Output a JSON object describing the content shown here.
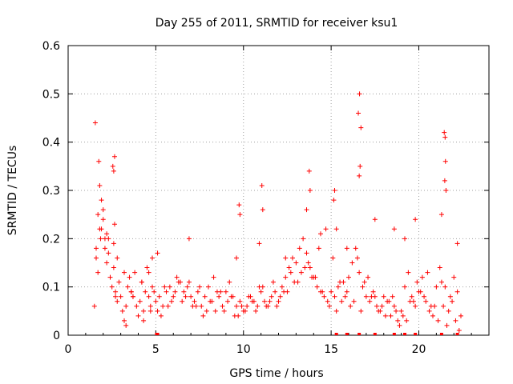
{
  "chart_data": {
    "type": "scatter",
    "title": "Day 255 of 2011, SRMTID for receiver ksu1",
    "xlabel": "GPS time / hours",
    "ylabel": "SRMTID / TECUs",
    "xlim": [
      0,
      24
    ],
    "ylim": [
      0,
      0.6
    ],
    "xticks": [
      "0",
      "5",
      "10",
      "15",
      "20"
    ],
    "xtick_values": [
      0,
      5,
      10,
      15,
      20
    ],
    "yticks": [
      "0",
      "0.1",
      "0.2",
      "0.3",
      "0.4",
      "0.5",
      "0.6"
    ],
    "ytick_values": [
      0,
      0.1,
      0.2,
      0.3,
      0.4,
      0.5,
      0.6
    ],
    "grid": true,
    "marker": "+",
    "marker_color": "#ff0000",
    "series": [
      {
        "name": "SRMTID",
        "x": [
          1.5,
          1.6,
          1.7,
          1.8,
          1.9,
          2.0,
          2.1,
          2.2,
          2.3,
          2.4,
          2.5,
          2.6,
          2.7,
          2.8,
          2.9,
          3.0,
          3.1,
          3.2,
          3.3,
          3.4,
          3.5,
          3.6,
          3.7,
          3.8,
          3.9,
          4.0,
          4.1,
          4.2,
          4.3,
          4.4,
          4.5,
          4.6,
          4.7,
          4.8,
          4.9,
          5.0,
          5.2,
          5.4,
          5.6,
          5.8,
          6.0,
          6.2,
          6.4,
          6.6,
          6.8,
          7.0,
          7.2,
          7.4,
          7.6,
          7.8,
          8.0,
          8.2,
          8.4,
          8.6,
          8.8,
          9.0,
          9.2,
          9.4,
          9.6,
          9.8,
          10.0,
          10.2,
          10.4,
          10.6,
          10.8,
          11.0,
          11.2,
          11.4,
          11.6,
          11.8,
          12.0,
          12.2,
          12.4,
          12.6,
          12.8,
          13.0,
          13.2,
          13.4,
          13.6,
          13.8,
          14.0,
          14.2,
          14.4,
          14.6,
          14.8,
          15.0,
          15.2,
          15.4,
          15.6,
          15.8,
          16.0,
          16.2,
          16.4,
          16.6,
          16.8,
          17.0,
          17.2,
          17.4,
          17.6,
          17.8,
          18.0,
          18.2,
          18.4,
          18.6,
          18.8,
          19.0,
          19.2,
          19.4,
          19.6,
          19.8,
          20.0,
          20.2,
          20.4,
          20.6,
          20.8,
          21.0,
          21.2,
          21.4,
          21.6,
          21.8,
          22.0,
          22.2,
          22.4,
          1.6,
          1.8,
          2.0,
          2.2,
          2.6,
          2.8,
          3.2,
          3.6,
          4.2,
          4.6,
          5.1,
          5.5,
          5.9,
          6.3,
          6.7,
          7.1,
          7.5,
          7.9,
          8.3,
          8.7,
          9.1,
          9.5,
          9.9,
          10.3,
          10.7,
          11.1,
          11.5,
          11.9,
          12.3,
          12.7,
          13.1,
          13.5,
          13.9,
          14.3,
          14.7,
          15.1,
          15.5,
          15.9,
          16.3,
          16.7,
          17.1,
          17.5,
          17.9,
          18.3,
          18.7,
          19.1,
          19.5,
          19.9,
          20.3,
          20.7,
          21.1,
          21.5,
          21.9,
          22.3,
          1.7,
          1.9,
          2.1,
          2.3,
          2.7,
          3.3,
          3.7,
          4.3,
          4.7,
          5.3,
          5.7,
          6.1,
          6.5,
          6.9,
          7.3,
          7.7,
          8.1,
          8.5,
          8.9,
          9.3,
          9.7,
          10.1,
          10.5,
          10.9,
          11.3,
          11.7,
          12.1,
          12.5,
          12.9,
          13.3,
          13.7,
          14.1,
          14.5,
          14.9,
          15.3,
          15.7,
          16.1,
          16.5,
          16.9,
          17.3,
          17.7,
          18.1,
          18.5,
          18.9,
          19.3,
          19.7,
          20.1,
          20.5,
          20.9,
          21.3,
          21.7,
          22.1,
          1.75,
          2.65,
          9.75,
          11.05,
          13.75,
          15.15,
          16.55,
          16.62,
          16.7,
          21.45,
          21.5,
          21.52,
          21.48,
          2.55,
          2.6,
          1.55,
          1.85,
          16.65,
          21.55,
          2.65,
          11.1,
          13.8,
          15.2,
          9.8,
          5.1,
          15.3,
          15.9,
          16.6,
          17.5,
          18.6,
          19.2,
          19.8,
          21.3,
          22.2,
          6.9,
          4.8,
          13.6,
          14.4,
          9.6,
          10.9,
          12.4
        ],
        "y": [
          0.06,
          0.16,
          0.25,
          0.22,
          0.28,
          0.26,
          0.18,
          0.15,
          0.2,
          0.12,
          0.1,
          0.14,
          0.09,
          0.07,
          0.11,
          0.08,
          0.05,
          0.03,
          0.06,
          0.1,
          0.12,
          0.09,
          0.08,
          0.13,
          0.06,
          0.04,
          0.07,
          0.11,
          0.05,
          0.09,
          0.14,
          0.08,
          0.06,
          0.1,
          0.09,
          0.07,
          0.08,
          0.06,
          0.09,
          0.1,
          0.08,
          0.12,
          0.11,
          0.09,
          0.1,
          0.08,
          0.07,
          0.09,
          0.06,
          0.08,
          0.1,
          0.07,
          0.05,
          0.08,
          0.06,
          0.09,
          0.11,
          0.08,
          0.06,
          0.07,
          0.05,
          0.06,
          0.08,
          0.07,
          0.06,
          0.09,
          0.07,
          0.06,
          0.08,
          0.09,
          0.07,
          0.1,
          0.12,
          0.14,
          0.16,
          0.15,
          0.18,
          0.2,
          0.17,
          0.14,
          0.12,
          0.1,
          0.09,
          0.08,
          0.07,
          0.09,
          0.08,
          0.1,
          0.07,
          0.08,
          0.12,
          0.15,
          0.18,
          0.13,
          0.1,
          0.08,
          0.07,
          0.09,
          0.06,
          0.05,
          0.08,
          0.07,
          0.04,
          0.06,
          0.03,
          0.05,
          0.1,
          0.13,
          0.08,
          0.06,
          0.09,
          0.12,
          0.07,
          0.05,
          0.04,
          0.1,
          0.14,
          0.06,
          0.02,
          0.08,
          0.12,
          0.09,
          0.04,
          0.18,
          0.31,
          0.24,
          0.21,
          0.19,
          0.16,
          0.13,
          0.09,
          0.11,
          0.13,
          0.05,
          0.1,
          0.07,
          0.11,
          0.08,
          0.06,
          0.1,
          0.05,
          0.12,
          0.09,
          0.07,
          0.04,
          0.06,
          0.08,
          0.05,
          0.1,
          0.07,
          0.06,
          0.09,
          0.13,
          0.11,
          0.14,
          0.12,
          0.18,
          0.22,
          0.16,
          0.11,
          0.09,
          0.07,
          0.05,
          0.12,
          0.08,
          0.06,
          0.07,
          0.05,
          0.04,
          0.07,
          0.11,
          0.08,
          0.06,
          0.03,
          0.1,
          0.07,
          0.01,
          0.13,
          0.22,
          0.2,
          0.17,
          0.08,
          0.02,
          0.08,
          0.03,
          0.05,
          0.04,
          0.06,
          0.09,
          0.07,
          0.11,
          0.06,
          0.04,
          0.07,
          0.09,
          0.05,
          0.08,
          0.04,
          0.05,
          0.07,
          0.1,
          0.06,
          0.11,
          0.08,
          0.09,
          0.11,
          0.13,
          0.15,
          0.12,
          0.09,
          0.06,
          0.05,
          0.11,
          0.06,
          0.16,
          0.11,
          0.08,
          0.05,
          0.04,
          0.08,
          0.02,
          0.03,
          0.07,
          0.09,
          0.13,
          0.06,
          0.11,
          0.05,
          0.03,
          0.36,
          0.37,
          0.27,
          0.31,
          0.34,
          0.28,
          0.46,
          0.5,
          0.43,
          0.42,
          0.41,
          0.36,
          0.32,
          0.35,
          0.34,
          0.44,
          0.2,
          0.35,
          0.3,
          0.23,
          0.26,
          0.3,
          0.3,
          0.25,
          0.17,
          0.22,
          0.18,
          0.33,
          0.24,
          0.22,
          0.2,
          0.24,
          0.25,
          0.19,
          0.2,
          0.16,
          0.26,
          0.21,
          0.16,
          0.19,
          0.16
        ],
        "baseline_x": [
          5.05,
          5.1,
          15.3,
          15.9,
          16.6,
          17.5,
          18.6,
          19.2,
          19.8,
          21.3,
          22.2
        ]
      }
    ]
  }
}
